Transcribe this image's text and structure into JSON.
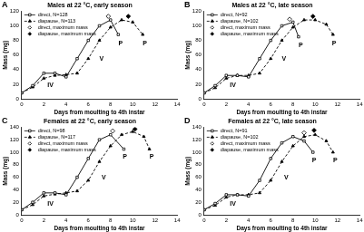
{
  "chart_data": [
    {
      "type": "line",
      "label": "A",
      "title": "Males at 22 °C, early season",
      "x_label": "Days from moulting to 4th instar",
      "y_label": "Mass (mg)",
      "xlim": [
        0,
        14
      ],
      "xticks": [
        0,
        2,
        4,
        6,
        8,
        10,
        12,
        14
      ],
      "ylim": [
        0,
        120
      ],
      "yticks": [
        0,
        20,
        40,
        60,
        80,
        100,
        120
      ],
      "grid": false,
      "legend": "upper left",
      "series": [
        {
          "name": "direct, N=128",
          "type": "line",
          "color": "#000000",
          "marker": "square-open",
          "line_style": "solid",
          "x": [
            0,
            1,
            2,
            3,
            4,
            5,
            6,
            7,
            8,
            8.7
          ],
          "values": [
            8,
            18,
            35,
            35,
            30,
            55,
            80,
            100,
            108,
            88
          ]
        },
        {
          "name": "diapause, N=113",
          "type": "line",
          "color": "#000000",
          "marker": "triangle",
          "line_style": "dashed",
          "x": [
            0,
            1,
            2,
            3,
            4,
            5,
            6,
            7,
            8,
            9,
            10,
            10.9
          ],
          "values": [
            8,
            16,
            28,
            32,
            33,
            35,
            55,
            80,
            98,
            108,
            105,
            88
          ]
        },
        {
          "name": "direct, maximum mass",
          "type": "scatter",
          "color": "#000000",
          "marker": "diamond-open",
          "x": [
            7.8
          ],
          "values": [
            113
          ]
        },
        {
          "name": "diapause, maximum mass",
          "type": "scatter",
          "color": "#000000",
          "marker": "diamond",
          "x": [
            9.6
          ],
          "values": [
            113
          ]
        }
      ],
      "annotations": [
        {
          "text": "IV",
          "x": 2.6,
          "y": 18
        },
        {
          "text": "V",
          "x": 7.2,
          "y": 55
        },
        {
          "text": "P",
          "x": 8.9,
          "y": 76
        },
        {
          "text": "P",
          "x": 11.1,
          "y": 76
        }
      ]
    },
    {
      "type": "line",
      "label": "B",
      "title": "Males at 22 °C, late season",
      "x_label": "Days from moulting to 4th instar",
      "y_label": "Mass (mg)",
      "xlim": [
        0,
        14
      ],
      "xticks": [
        0,
        2,
        4,
        6,
        8,
        10,
        12,
        14
      ],
      "ylim": [
        0,
        120
      ],
      "yticks": [
        0,
        20,
        40,
        60,
        80,
        100,
        120
      ],
      "grid": false,
      "legend": "upper left",
      "series": [
        {
          "name": "direct, N=92",
          "type": "line",
          "color": "#000000",
          "marker": "square-open",
          "line_style": "solid",
          "x": [
            0,
            1,
            2,
            3,
            4,
            5,
            6,
            7,
            8,
            8.5
          ],
          "values": [
            8,
            18,
            32,
            32,
            30,
            55,
            80,
            100,
            105,
            85
          ]
        },
        {
          "name": "diapause, N=102",
          "type": "line",
          "color": "#000000",
          "marker": "triangle",
          "line_style": "dashed",
          "x": [
            0,
            1,
            2,
            3,
            4,
            5,
            6,
            7,
            8,
            9,
            10,
            11,
            11.6
          ],
          "values": [
            8,
            15,
            28,
            32,
            32,
            35,
            55,
            80,
            98,
            108,
            108,
            102,
            88
          ]
        },
        {
          "name": "direct, maximum mass",
          "type": "scatter",
          "color": "#000000",
          "marker": "diamond-open",
          "x": [
            7.7
          ],
          "values": [
            109
          ]
        },
        {
          "name": "diapause, maximum mass",
          "type": "scatter",
          "color": "#000000",
          "marker": "diamond",
          "x": [
            9.8
          ],
          "values": [
            113
          ]
        }
      ],
      "annotations": [
        {
          "text": "IV",
          "x": 2.6,
          "y": 18
        },
        {
          "text": "V",
          "x": 7.2,
          "y": 55
        },
        {
          "text": "P",
          "x": 8.7,
          "y": 73
        },
        {
          "text": "P",
          "x": 11.7,
          "y": 76
        }
      ]
    },
    {
      "type": "line",
      "label": "C",
      "title": "Females at 22 °C, early season",
      "x_label": "Days from moulting to 4th instar",
      "y_label": "Mass (mg)",
      "xlim": [
        0,
        14
      ],
      "xticks": [
        0,
        2,
        4,
        6,
        8,
        10,
        12,
        14
      ],
      "ylim": [
        0,
        140
      ],
      "yticks": [
        0,
        20,
        40,
        60,
        80,
        100,
        120,
        140
      ],
      "grid": false,
      "legend": "upper left",
      "series": [
        {
          "name": "direct, N=98",
          "type": "line",
          "color": "#000000",
          "marker": "square-open",
          "line_style": "solid",
          "x": [
            0,
            1,
            2,
            3,
            4,
            5,
            6,
            7,
            8,
            9.2
          ],
          "values": [
            8,
            20,
            35,
            35,
            32,
            60,
            90,
            120,
            128,
            105
          ]
        },
        {
          "name": "diapause, N=117",
          "type": "line",
          "color": "#000000",
          "marker": "triangle",
          "line_style": "dashed",
          "x": [
            0,
            1,
            2,
            3,
            4,
            5,
            6,
            7,
            8,
            9,
            10,
            11,
            11.5
          ],
          "values": [
            8,
            16,
            30,
            33,
            35,
            38,
            55,
            85,
            110,
            128,
            133,
            125,
            105
          ]
        },
        {
          "name": "direct, maximum mass",
          "type": "scatter",
          "color": "#000000",
          "marker": "diamond-open",
          "x": [
            8.2
          ],
          "values": [
            134
          ]
        },
        {
          "name": "diapause, maximum mass",
          "type": "scatter",
          "color": "#000000",
          "marker": "diamond",
          "x": [
            10.2
          ],
          "values": [
            137
          ]
        }
      ],
      "annotations": [
        {
          "text": "IV",
          "x": 2.6,
          "y": 18
        },
        {
          "text": "V",
          "x": 7.4,
          "y": 60
        },
        {
          "text": "P",
          "x": 9.3,
          "y": 92
        },
        {
          "text": "P",
          "x": 11.7,
          "y": 92
        }
      ]
    },
    {
      "type": "line",
      "label": "D",
      "title": "Females at 22 °C, late season",
      "x_label": "Days from moulting to 4th instar",
      "y_label": "Mass (mg)",
      "xlim": [
        0,
        14
      ],
      "xticks": [
        0,
        2,
        4,
        6,
        8,
        10,
        12,
        14
      ],
      "ylim": [
        0,
        140
      ],
      "yticks": [
        0,
        20,
        40,
        60,
        80,
        100,
        120,
        140
      ],
      "grid": false,
      "legend": "upper left",
      "series": [
        {
          "name": "direct, N=91",
          "type": "line",
          "color": "#000000",
          "marker": "square-open",
          "line_style": "solid",
          "x": [
            0,
            1,
            2,
            3,
            4,
            5,
            6,
            7,
            8,
            9,
            9.8
          ],
          "values": [
            8,
            18,
            32,
            32,
            30,
            55,
            90,
            115,
            125,
            118,
            100
          ]
        },
        {
          "name": "diapause, N=102",
          "type": "line",
          "color": "#000000",
          "marker": "triangle",
          "line_style": "dashed",
          "x": [
            0,
            1,
            2,
            3,
            4,
            5,
            6,
            7,
            8,
            9,
            10,
            11,
            11.6
          ],
          "values": [
            8,
            15,
            28,
            32,
            32,
            35,
            55,
            85,
            110,
            125,
            128,
            118,
            100
          ]
        },
        {
          "name": "direct, maximum mass",
          "type": "scatter",
          "color": "#000000",
          "marker": "diamond-open",
          "x": [
            9
          ],
          "values": [
            131
          ]
        },
        {
          "name": "diapause, maximum mass",
          "type": "scatter",
          "color": "#000000",
          "marker": "diamond",
          "x": [
            9.9
          ],
          "values": [
            135
          ]
        }
      ],
      "annotations": [
        {
          "text": "IV",
          "x": 2.6,
          "y": 18
        },
        {
          "text": "V",
          "x": 7.4,
          "y": 60
        },
        {
          "text": "P",
          "x": 9.9,
          "y": 87
        },
        {
          "text": "P",
          "x": 11.8,
          "y": 87
        }
      ]
    }
  ]
}
